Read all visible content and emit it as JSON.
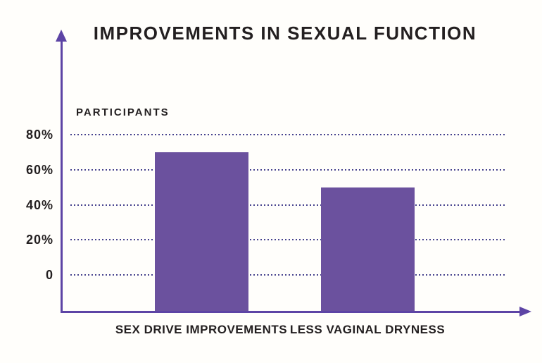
{
  "page": {
    "background": "#fffefb"
  },
  "chart_data": {
    "type": "bar",
    "title": "IMPROVEMENTS IN SEXUAL FUNCTION",
    "ylabel": "PARTICIPANTS",
    "xlabel": "",
    "categories": [
      "SEX DRIVE IMPROVEMENTS",
      "LESS VAGINAL DRYNESS"
    ],
    "values": [
      70,
      50
    ],
    "yticks": [
      {
        "label": "80%",
        "value": 80
      },
      {
        "label": "60%",
        "value": 60
      },
      {
        "label": "40%",
        "value": 40
      },
      {
        "label": "20%",
        "value": 20
      },
      {
        "label": "0",
        "value": 0
      }
    ],
    "ylim": [
      0,
      80
    ],
    "grid": "horizontal-dotted",
    "legend_position": "none",
    "colors": {
      "bar": "#6b519e",
      "axis": "#5d44a5",
      "grid": "#46428e",
      "text": "#231f20"
    }
  }
}
